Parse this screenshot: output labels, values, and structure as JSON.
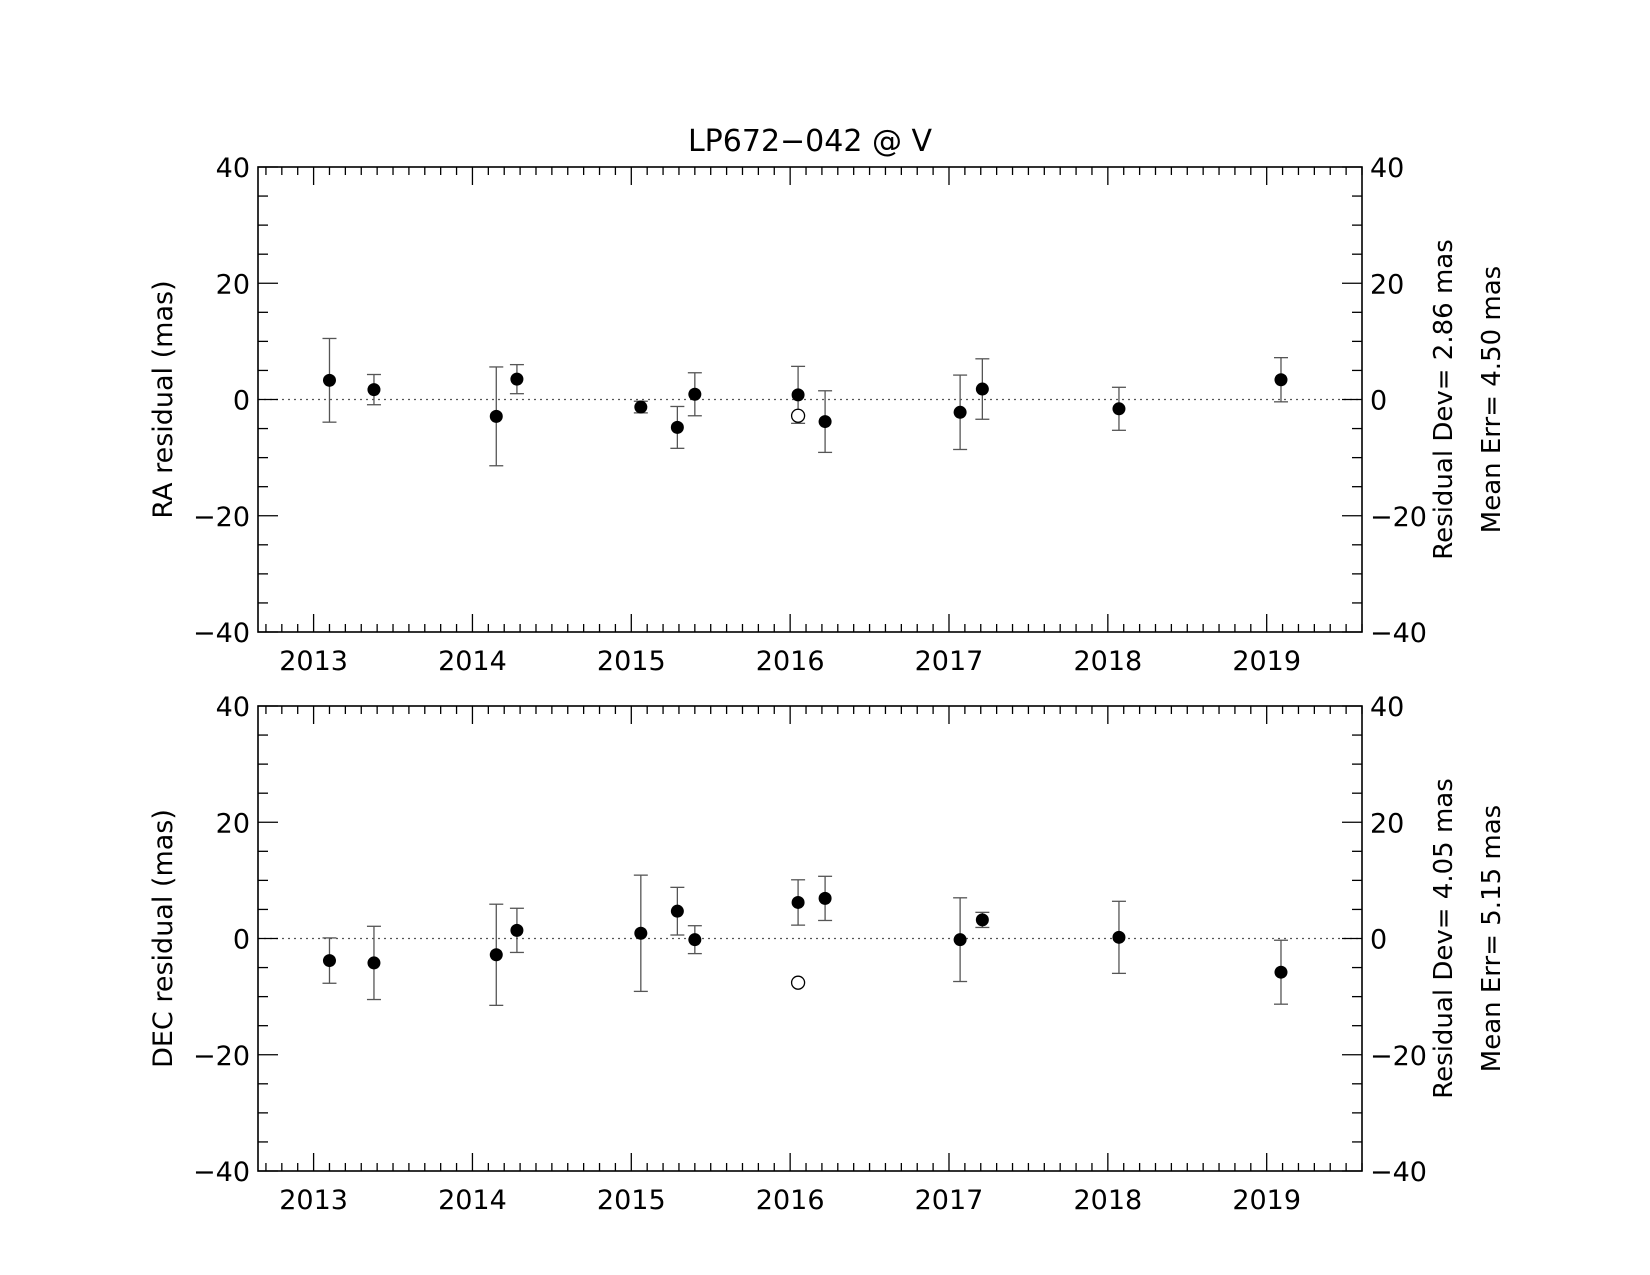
{
  "title": "LP672−042 @ V",
  "chart_data": [
    {
      "type": "scatter",
      "id": "ra",
      "ylabel": "RA residual (mas)",
      "xlim": [
        2012.65,
        2019.6
      ],
      "ylim": [
        -40,
        40
      ],
      "xticks": [
        2013,
        2014,
        2015,
        2016,
        2017,
        2018,
        2019
      ],
      "xtick_labels": [
        "2013",
        "2014",
        "2015",
        "2016",
        "2017",
        "2018",
        "2019"
      ],
      "yticks": [
        -40,
        -20,
        0,
        20,
        40
      ],
      "ytick_labels": [
        "−40",
        "−20",
        "0",
        "20",
        "40"
      ],
      "zero_line": true,
      "stats": {
        "residual_dev": "Residual Dev=   2.86 mas",
        "mean_err": "Mean Err=  4.50 mas"
      },
      "points": [
        {
          "x": 2013.1,
          "y": 3.3,
          "err": 7.2,
          "filled": true
        },
        {
          "x": 2013.38,
          "y": 1.7,
          "err": 2.6,
          "filled": true
        },
        {
          "x": 2014.15,
          "y": -2.9,
          "err": 8.5,
          "filled": true
        },
        {
          "x": 2014.28,
          "y": 3.5,
          "err": 2.5,
          "filled": true
        },
        {
          "x": 2015.06,
          "y": -1.3,
          "err": 1.0,
          "filled": true
        },
        {
          "x": 2015.29,
          "y": -4.8,
          "err": 3.6,
          "filled": true
        },
        {
          "x": 2015.4,
          "y": 0.9,
          "err": 3.7,
          "filled": true
        },
        {
          "x": 2016.05,
          "y": 0.8,
          "err": 4.9,
          "filled": true
        },
        {
          "x": 2016.05,
          "y": -2.8,
          "err": 0,
          "filled": false
        },
        {
          "x": 2016.22,
          "y": -3.8,
          "err": 5.3,
          "filled": true
        },
        {
          "x": 2017.07,
          "y": -2.2,
          "err": 6.4,
          "filled": true
        },
        {
          "x": 2017.21,
          "y": 1.8,
          "err": 5.2,
          "filled": true
        },
        {
          "x": 2018.07,
          "y": -1.6,
          "err": 3.7,
          "filled": true
        },
        {
          "x": 2019.09,
          "y": 3.4,
          "err": 3.8,
          "filled": true
        }
      ]
    },
    {
      "type": "scatter",
      "id": "dec",
      "ylabel": "DEC residual (mas)",
      "xlim": [
        2012.65,
        2019.6
      ],
      "ylim": [
        -40,
        40
      ],
      "xticks": [
        2013,
        2014,
        2015,
        2016,
        2017,
        2018,
        2019
      ],
      "xtick_labels": [
        "2013",
        "2014",
        "2015",
        "2016",
        "2017",
        "2018",
        "2019"
      ],
      "yticks": [
        -40,
        -20,
        0,
        20,
        40
      ],
      "ytick_labels": [
        "−40",
        "−20",
        "0",
        "20",
        "40"
      ],
      "zero_line": true,
      "stats": {
        "residual_dev": "Residual Dev=   4.05 mas",
        "mean_err": "Mean Err=  5.15 mas"
      },
      "points": [
        {
          "x": 2013.1,
          "y": -3.8,
          "err": 3.9,
          "filled": true
        },
        {
          "x": 2013.38,
          "y": -4.2,
          "err": 6.3,
          "filled": true
        },
        {
          "x": 2014.15,
          "y": -2.8,
          "err": 8.7,
          "filled": true
        },
        {
          "x": 2014.28,
          "y": 1.4,
          "err": 3.8,
          "filled": true
        },
        {
          "x": 2015.06,
          "y": 0.9,
          "err": 10.0,
          "filled": true
        },
        {
          "x": 2015.29,
          "y": 4.7,
          "err": 4.1,
          "filled": true
        },
        {
          "x": 2015.4,
          "y": -0.2,
          "err": 2.4,
          "filled": true
        },
        {
          "x": 2016.05,
          "y": 6.2,
          "err": 3.9,
          "filled": true
        },
        {
          "x": 2016.05,
          "y": -7.6,
          "err": 0,
          "filled": false
        },
        {
          "x": 2016.22,
          "y": 6.9,
          "err": 3.8,
          "filled": true
        },
        {
          "x": 2017.07,
          "y": -0.2,
          "err": 7.2,
          "filled": true
        },
        {
          "x": 2017.21,
          "y": 3.2,
          "err": 1.3,
          "filled": true
        },
        {
          "x": 2018.07,
          "y": 0.2,
          "err": 6.2,
          "filled": true
        },
        {
          "x": 2019.09,
          "y": -5.8,
          "err": 5.5,
          "filled": true
        }
      ]
    }
  ]
}
